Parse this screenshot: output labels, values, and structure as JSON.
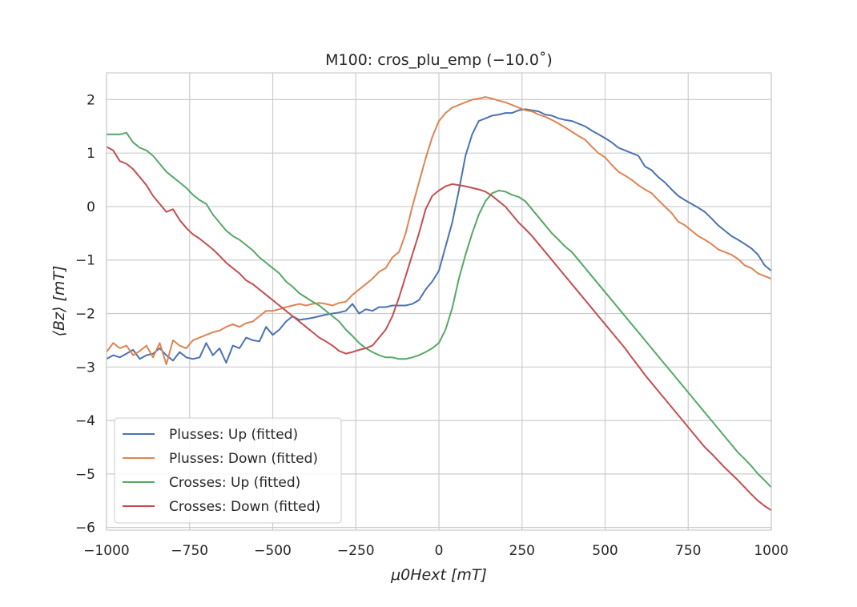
{
  "chart_data": {
    "type": "line",
    "title": "M100: cros_plu_emp (−10.0˚)",
    "xlabel": "μ0Hext [mT]",
    "ylabel": "⟨Bz⟩ [mT]",
    "xlim": [
      -1000,
      1000
    ],
    "ylim": [
      -6.05,
      2.5
    ],
    "xticks": [
      -1000,
      -750,
      -500,
      -250,
      0,
      250,
      500,
      750,
      1000
    ],
    "xtick_labels": [
      "−1000",
      "−750",
      "−500",
      "−250",
      "0",
      "250",
      "500",
      "750",
      "1000"
    ],
    "yticks": [
      -6,
      -5,
      -4,
      -3,
      -2,
      -1,
      0,
      1,
      2
    ],
    "ytick_labels": [
      "−6",
      "−5",
      "−4",
      "−3",
      "−2",
      "−1",
      "0",
      "1",
      "2"
    ],
    "grid": true,
    "legend_position": "lower-left",
    "series": [
      {
        "name": "Plusses: Up (fitted)",
        "color": "#4c72b0",
        "x": [
          -1000,
          -980,
          -960,
          -940,
          -920,
          -900,
          -880,
          -860,
          -840,
          -820,
          -800,
          -780,
          -760,
          -740,
          -720,
          -700,
          -680,
          -660,
          -640,
          -620,
          -600,
          -580,
          -560,
          -540,
          -520,
          -500,
          -480,
          -460,
          -440,
          -420,
          -400,
          -380,
          -360,
          -340,
          -320,
          -300,
          -280,
          -260,
          -240,
          -220,
          -200,
          -180,
          -160,
          -140,
          -120,
          -100,
          -80,
          -60,
          -40,
          -20,
          0,
          20,
          40,
          60,
          80,
          100,
          120,
          140,
          160,
          180,
          200,
          220,
          240,
          260,
          280,
          300,
          320,
          340,
          360,
          380,
          400,
          420,
          440,
          460,
          480,
          500,
          520,
          540,
          560,
          580,
          600,
          620,
          640,
          660,
          680,
          700,
          720,
          740,
          760,
          780,
          800,
          820,
          840,
          860,
          880,
          900,
          920,
          940,
          960,
          980,
          1000
        ],
        "values": [
          -2.85,
          -2.78,
          -2.82,
          -2.75,
          -2.68,
          -2.85,
          -2.78,
          -2.75,
          -2.65,
          -2.78,
          -2.88,
          -2.72,
          -2.82,
          -2.85,
          -2.82,
          -2.55,
          -2.78,
          -2.65,
          -2.92,
          -2.6,
          -2.65,
          -2.45,
          -2.5,
          -2.52,
          -2.25,
          -2.4,
          -2.3,
          -2.15,
          -2.05,
          -2.12,
          -2.1,
          -2.08,
          -2.05,
          -2.02,
          -2.0,
          -1.98,
          -1.95,
          -1.82,
          -2.0,
          -1.92,
          -1.95,
          -1.88,
          -1.88,
          -1.85,
          -1.85,
          -1.85,
          -1.82,
          -1.75,
          -1.55,
          -1.4,
          -1.2,
          -0.75,
          -0.3,
          0.3,
          0.95,
          1.35,
          1.6,
          1.65,
          1.7,
          1.72,
          1.75,
          1.75,
          1.8,
          1.82,
          1.8,
          1.78,
          1.72,
          1.7,
          1.65,
          1.62,
          1.6,
          1.55,
          1.5,
          1.42,
          1.35,
          1.28,
          1.2,
          1.1,
          1.05,
          1.0,
          0.95,
          0.75,
          0.68,
          0.55,
          0.45,
          0.32,
          0.2,
          0.12,
          0.05,
          -0.02,
          -0.1,
          -0.22,
          -0.35,
          -0.45,
          -0.55,
          -0.62,
          -0.7,
          -0.78,
          -0.9,
          -1.1,
          -1.2
        ]
      },
      {
        "name": "Plusses: Down (fitted)",
        "color": "#dd8452",
        "x": [
          -1000,
          -980,
          -960,
          -940,
          -920,
          -900,
          -880,
          -860,
          -840,
          -820,
          -800,
          -780,
          -760,
          -740,
          -720,
          -700,
          -680,
          -660,
          -640,
          -620,
          -600,
          -580,
          -560,
          -540,
          -520,
          -500,
          -480,
          -460,
          -440,
          -420,
          -400,
          -380,
          -360,
          -340,
          -320,
          -300,
          -280,
          -260,
          -240,
          -220,
          -200,
          -180,
          -160,
          -140,
          -120,
          -100,
          -80,
          -60,
          -40,
          -20,
          0,
          20,
          40,
          60,
          80,
          100,
          120,
          140,
          160,
          180,
          200,
          220,
          240,
          260,
          280,
          300,
          320,
          340,
          360,
          380,
          400,
          420,
          440,
          460,
          480,
          500,
          520,
          540,
          560,
          580,
          600,
          620,
          640,
          660,
          680,
          700,
          720,
          740,
          760,
          780,
          800,
          820,
          840,
          860,
          880,
          900,
          920,
          940,
          960,
          980,
          1000
        ],
        "values": [
          -2.72,
          -2.55,
          -2.65,
          -2.6,
          -2.78,
          -2.7,
          -2.6,
          -2.82,
          -2.55,
          -2.95,
          -2.5,
          -2.6,
          -2.65,
          -2.5,
          -2.45,
          -2.4,
          -2.35,
          -2.32,
          -2.25,
          -2.2,
          -2.25,
          -2.18,
          -2.15,
          -2.05,
          -1.95,
          -1.95,
          -1.92,
          -1.88,
          -1.85,
          -1.82,
          -1.85,
          -1.82,
          -1.8,
          -1.82,
          -1.85,
          -1.8,
          -1.78,
          -1.65,
          -1.55,
          -1.45,
          -1.35,
          -1.22,
          -1.15,
          -0.95,
          -0.85,
          -0.5,
          0.0,
          0.45,
          0.9,
          1.3,
          1.6,
          1.75,
          1.85,
          1.9,
          1.95,
          2.0,
          2.02,
          2.05,
          2.02,
          1.98,
          1.95,
          1.9,
          1.85,
          1.8,
          1.78,
          1.72,
          1.68,
          1.62,
          1.55,
          1.48,
          1.4,
          1.32,
          1.25,
          1.12,
          1.0,
          0.92,
          0.78,
          0.65,
          0.58,
          0.5,
          0.4,
          0.32,
          0.25,
          0.12,
          0.0,
          -0.12,
          -0.28,
          -0.35,
          -0.45,
          -0.55,
          -0.62,
          -0.7,
          -0.8,
          -0.85,
          -0.9,
          -0.98,
          -1.1,
          -1.15,
          -1.25,
          -1.3,
          -1.35
        ]
      },
      {
        "name": "Crosses: Up (fitted)",
        "color": "#55a868",
        "x": [
          -1000,
          -980,
          -960,
          -940,
          -920,
          -900,
          -880,
          -860,
          -840,
          -820,
          -800,
          -780,
          -760,
          -740,
          -720,
          -700,
          -680,
          -660,
          -640,
          -620,
          -600,
          -580,
          -560,
          -540,
          -520,
          -500,
          -480,
          -460,
          -440,
          -420,
          -400,
          -380,
          -360,
          -340,
          -320,
          -300,
          -280,
          -260,
          -240,
          -220,
          -200,
          -180,
          -160,
          -140,
          -120,
          -100,
          -80,
          -60,
          -40,
          -20,
          0,
          20,
          40,
          60,
          80,
          100,
          120,
          140,
          160,
          180,
          200,
          220,
          240,
          260,
          280,
          300,
          320,
          340,
          360,
          380,
          400,
          420,
          440,
          460,
          480,
          500,
          520,
          540,
          560,
          580,
          600,
          620,
          640,
          660,
          680,
          700,
          720,
          740,
          760,
          780,
          800,
          820,
          840,
          860,
          880,
          900,
          920,
          940,
          960,
          980,
          1000
        ],
        "values": [
          1.35,
          1.35,
          1.35,
          1.38,
          1.2,
          1.1,
          1.05,
          0.95,
          0.8,
          0.65,
          0.55,
          0.45,
          0.35,
          0.22,
          0.12,
          0.05,
          -0.15,
          -0.3,
          -0.45,
          -0.55,
          -0.62,
          -0.72,
          -0.82,
          -0.95,
          -1.05,
          -1.15,
          -1.25,
          -1.4,
          -1.5,
          -1.62,
          -1.7,
          -1.78,
          -1.85,
          -1.95,
          -2.05,
          -2.15,
          -2.3,
          -2.42,
          -2.55,
          -2.65,
          -2.72,
          -2.78,
          -2.82,
          -2.82,
          -2.85,
          -2.85,
          -2.82,
          -2.78,
          -2.72,
          -2.65,
          -2.55,
          -2.3,
          -1.9,
          -1.35,
          -0.9,
          -0.5,
          -0.15,
          0.1,
          0.25,
          0.3,
          0.28,
          0.22,
          0.18,
          0.1,
          -0.05,
          -0.2,
          -0.35,
          -0.5,
          -0.62,
          -0.75,
          -0.85,
          -1.0,
          -1.15,
          -1.3,
          -1.45,
          -1.6,
          -1.75,
          -1.9,
          -2.05,
          -2.2,
          -2.35,
          -2.5,
          -2.65,
          -2.8,
          -2.95,
          -3.1,
          -3.25,
          -3.4,
          -3.55,
          -3.7,
          -3.85,
          -4.0,
          -4.15,
          -4.3,
          -4.45,
          -4.6,
          -4.72,
          -4.85,
          -5.0,
          -5.12,
          -5.25
        ]
      },
      {
        "name": "Crosses: Down (fitted)",
        "color": "#c44e52",
        "x": [
          -1000,
          -980,
          -960,
          -940,
          -920,
          -900,
          -880,
          -860,
          -840,
          -820,
          -800,
          -780,
          -760,
          -740,
          -720,
          -700,
          -680,
          -660,
          -640,
          -620,
          -600,
          -580,
          -560,
          -540,
          -520,
          -500,
          -480,
          -460,
          -440,
          -420,
          -400,
          -380,
          -360,
          -340,
          -320,
          -300,
          -280,
          -260,
          -240,
          -220,
          -200,
          -180,
          -160,
          -140,
          -120,
          -100,
          -80,
          -60,
          -40,
          -20,
          0,
          20,
          40,
          60,
          80,
          100,
          120,
          140,
          160,
          180,
          200,
          220,
          240,
          260,
          280,
          300,
          320,
          340,
          360,
          380,
          400,
          420,
          440,
          460,
          480,
          500,
          520,
          540,
          560,
          580,
          600,
          620,
          640,
          660,
          680,
          700,
          720,
          740,
          760,
          780,
          800,
          820,
          840,
          860,
          880,
          900,
          920,
          940,
          960,
          980,
          1000
        ],
        "values": [
          1.12,
          1.05,
          0.85,
          0.8,
          0.7,
          0.55,
          0.4,
          0.2,
          0.05,
          -0.1,
          -0.05,
          -0.25,
          -0.4,
          -0.52,
          -0.6,
          -0.7,
          -0.8,
          -0.92,
          -1.05,
          -1.15,
          -1.25,
          -1.38,
          -1.45,
          -1.55,
          -1.65,
          -1.75,
          -1.85,
          -1.95,
          -2.05,
          -2.15,
          -2.25,
          -2.35,
          -2.45,
          -2.52,
          -2.6,
          -2.7,
          -2.75,
          -2.72,
          -2.68,
          -2.65,
          -2.6,
          -2.45,
          -2.3,
          -2.05,
          -1.7,
          -1.3,
          -0.9,
          -0.5,
          -0.05,
          0.2,
          0.3,
          0.38,
          0.42,
          0.4,
          0.38,
          0.35,
          0.32,
          0.28,
          0.2,
          0.1,
          0.0,
          -0.15,
          -0.3,
          -0.42,
          -0.55,
          -0.7,
          -0.85,
          -1.0,
          -1.15,
          -1.3,
          -1.45,
          -1.6,
          -1.75,
          -1.9,
          -2.05,
          -2.2,
          -2.35,
          -2.5,
          -2.65,
          -2.82,
          -2.98,
          -3.15,
          -3.3,
          -3.45,
          -3.6,
          -3.75,
          -3.9,
          -4.05,
          -4.2,
          -4.35,
          -4.5,
          -4.62,
          -4.75,
          -4.88,
          -5.0,
          -5.12,
          -5.25,
          -5.38,
          -5.5,
          -5.6,
          -5.68
        ]
      }
    ]
  }
}
